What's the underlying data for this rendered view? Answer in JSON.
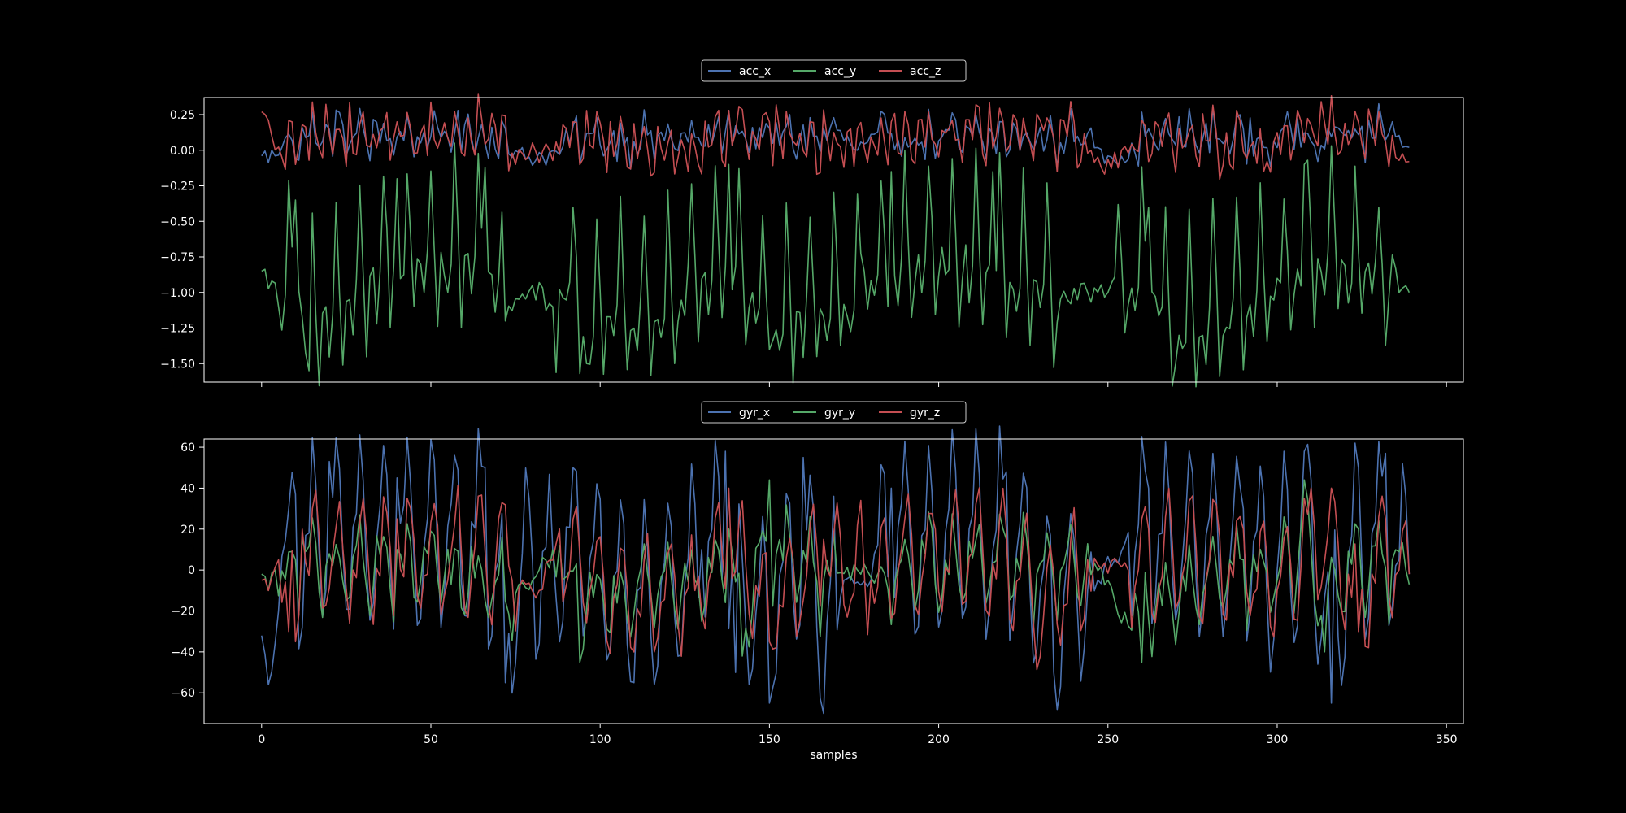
{
  "chart_data": [
    {
      "type": "line",
      "title": "",
      "xlabel": "",
      "ylabel": "",
      "xlim": [
        -17,
        355
      ],
      "ylim": [
        -1.63,
        0.37
      ],
      "x_ticks": [
        0,
        50,
        100,
        150,
        200,
        250,
        300,
        350
      ],
      "x_tick_labels_visible": false,
      "y_ticks": [
        0.25,
        0.0,
        -0.25,
        -0.5,
        -0.75,
        -1.0,
        -1.25,
        -1.5
      ],
      "y_tick_labels": [
        "0.25",
        "0.00",
        "−0.25",
        "−0.50",
        "−0.75",
        "−1.00",
        "−1.25",
        "−1.50"
      ],
      "grid": false,
      "legend_placement": "top-center-outside",
      "legend_columns": 3,
      "n_samples": 340,
      "series": [
        {
          "name": "acc_x",
          "color": "#4c72b0",
          "period": 7,
          "pattern": [
            0.02,
            0.16,
            0.12,
            0.0,
            -0.04,
            0.1,
            0.06
          ],
          "anchors": [
            [
              0,
              -0.04
            ],
            [
              4,
              -0.04
            ],
            [
              6,
              0.02
            ],
            [
              12,
              0.16
            ],
            [
              24,
              0.18
            ],
            [
              60,
              0.18
            ],
            [
              72,
              0.15
            ],
            [
              74,
              -0.05
            ],
            [
              88,
              -0.03
            ],
            [
              96,
              0.12
            ],
            [
              124,
              0.12
            ],
            [
              130,
              0.03
            ],
            [
              138,
              0.28
            ],
            [
              145,
              0.16
            ],
            [
              168,
              0.16
            ],
            [
              176,
              0.0
            ],
            [
              186,
              0.12
            ],
            [
              244,
              0.12
            ],
            [
              250,
              -0.04
            ],
            [
              258,
              -0.02
            ],
            [
              262,
              0.15
            ],
            [
              290,
              0.15
            ],
            [
              296,
              0.02
            ],
            [
              306,
              0.22
            ],
            [
              334,
              0.2
            ],
            [
              339,
              0.02
            ]
          ],
          "quiet_spans": [
            [
              0,
              6
            ],
            [
              73,
              88
            ],
            [
              170,
              182
            ],
            [
              244,
              258
            ],
            [
              334,
              339
            ]
          ]
        },
        {
          "name": "acc_y",
          "color": "#55a868",
          "period": 7,
          "pattern": [
            -1.1,
            -0.35,
            -0.9,
            -1.5,
            -1.15,
            -1.1,
            -1.3
          ],
          "anchors": [
            [
              0,
              -0.85
            ],
            [
              3,
              -0.92
            ],
            [
              5,
              -1.1
            ],
            [
              10,
              -0.35
            ],
            [
              14,
              -1.55
            ],
            [
              40,
              -0.2
            ],
            [
              66,
              -0.12
            ],
            [
              72,
              -1.2
            ],
            [
              80,
              -0.95
            ],
            [
              86,
              -1.1
            ],
            [
              92,
              -0.4
            ],
            [
              96,
              -1.5
            ],
            [
              126,
              -0.8
            ],
            [
              138,
              -0.1
            ],
            [
              150,
              -1.4
            ],
            [
              178,
              -0.85
            ],
            [
              186,
              -0.15
            ],
            [
              216,
              -0.15
            ],
            [
              238,
              -1.05
            ],
            [
              244,
              -1.0
            ],
            [
              250,
              -1.0
            ],
            [
              262,
              -0.4
            ],
            [
              270,
              -1.5
            ],
            [
              300,
              -0.9
            ],
            [
              308,
              -0.1
            ],
            [
              330,
              -0.4
            ],
            [
              336,
              -1.0
            ],
            [
              339,
              -1.0
            ]
          ],
          "quiet_spans": [
            [
              0,
              5
            ],
            [
              72,
              86
            ],
            [
              236,
              252
            ],
            [
              334,
              339
            ]
          ]
        },
        {
          "name": "acc_z",
          "color": "#c44e52",
          "period": 7,
          "pattern": [
            0.0,
            0.22,
            0.14,
            -0.06,
            -0.08,
            0.18,
            0.05
          ],
          "anchors": [
            [
              0,
              0.27
            ],
            [
              3,
              0.1
            ],
            [
              6,
              -0.05
            ],
            [
              10,
              -0.1
            ],
            [
              12,
              0.18
            ],
            [
              40,
              0.2
            ],
            [
              72,
              0.24
            ],
            [
              74,
              -0.02
            ],
            [
              88,
              -0.02
            ],
            [
              92,
              0.2
            ],
            [
              126,
              -0.15
            ],
            [
              138,
              0.28
            ],
            [
              150,
              0.2
            ],
            [
              170,
              0.05
            ],
            [
              178,
              0.02
            ],
            [
              186,
              0.2
            ],
            [
              240,
              0.2
            ],
            [
              248,
              -0.12
            ],
            [
              256,
              -0.02
            ],
            [
              264,
              0.2
            ],
            [
              296,
              -0.15
            ],
            [
              306,
              0.28
            ],
            [
              330,
              0.27
            ],
            [
              335,
              -0.05
            ],
            [
              339,
              -0.08
            ]
          ],
          "quiet_spans": [
            [
              0,
              6
            ],
            [
              74,
              88
            ],
            [
              244,
              258
            ],
            [
              335,
              339
            ]
          ]
        }
      ]
    },
    {
      "type": "line",
      "title": "",
      "xlabel": "samples",
      "ylabel": "",
      "xlim": [
        -17,
        355
      ],
      "ylim": [
        -75,
        64
      ],
      "x_ticks": [
        0,
        50,
        100,
        150,
        200,
        250,
        300,
        350
      ],
      "x_tick_labels": [
        "0",
        "50",
        "100",
        "150",
        "200",
        "250",
        "300",
        "350"
      ],
      "y_ticks": [
        60,
        40,
        20,
        0,
        -20,
        -40,
        -60
      ],
      "y_tick_labels": [
        "60",
        "40",
        "20",
        "0",
        "−20",
        "−40",
        "−60"
      ],
      "grid": false,
      "legend_placement": "top-center-outside",
      "legend_columns": 3,
      "n_samples": 340,
      "series": [
        {
          "name": "gyr_x",
          "color": "#4c72b0",
          "period": 7,
          "pattern": [
            10,
            45,
            30,
            -15,
            -45,
            -35,
            0
          ],
          "anchors": [
            [
              0,
              -32
            ],
            [
              2,
              -56
            ],
            [
              5,
              -20
            ],
            [
              8,
              30
            ],
            [
              10,
              37
            ],
            [
              20,
              53
            ],
            [
              40,
              45
            ],
            [
              66,
              50
            ],
            [
              72,
              -55
            ],
            [
              80,
              5
            ],
            [
              86,
              10
            ],
            [
              92,
              50
            ],
            [
              110,
              -55
            ],
            [
              130,
              10
            ],
            [
              137,
              58
            ],
            [
              140,
              -50
            ],
            [
              150,
              -65
            ],
            [
              160,
              55
            ],
            [
              166,
              -70
            ],
            [
              172,
              -5
            ],
            [
              180,
              -5
            ],
            [
              186,
              40
            ],
            [
              220,
              48
            ],
            [
              234,
              -50
            ],
            [
              244,
              -10
            ],
            [
              252,
              5
            ],
            [
              262,
              40
            ],
            [
              290,
              30
            ],
            [
              300,
              0
            ],
            [
              308,
              58
            ],
            [
              316,
              -65
            ],
            [
              324,
              50
            ],
            [
              332,
              57
            ],
            [
              336,
              5
            ],
            [
              339,
              -2
            ]
          ],
          "quiet_spans": [
            [
              0,
              4
            ],
            [
              170,
              182
            ],
            [
              246,
              256
            ]
          ]
        },
        {
          "name": "gyr_y",
          "color": "#55a868",
          "period": 7,
          "pattern": [
            0,
            15,
            8,
            -10,
            -25,
            -12,
            5
          ],
          "anchors": [
            [
              0,
              -2
            ],
            [
              2,
              -10
            ],
            [
              4,
              0
            ],
            [
              10,
              5
            ],
            [
              12,
              15
            ],
            [
              40,
              10
            ],
            [
              72,
              -15
            ],
            [
              80,
              -5
            ],
            [
              88,
              12
            ],
            [
              94,
              -45
            ],
            [
              128,
              -5
            ],
            [
              138,
              20
            ],
            [
              142,
              -42
            ],
            [
              150,
              44
            ],
            [
              166,
              -5
            ],
            [
              176,
              0
            ],
            [
              182,
              -2
            ],
            [
              190,
              15
            ],
            [
              220,
              15
            ],
            [
              240,
              5
            ],
            [
              250,
              -5
            ],
            [
              260,
              -45
            ],
            [
              290,
              5
            ],
            [
              300,
              -5
            ],
            [
              308,
              44
            ],
            [
              314,
              -40
            ],
            [
              324,
              20
            ],
            [
              334,
              5
            ],
            [
              339,
              -7
            ]
          ],
          "quiet_spans": [
            [
              0,
              4
            ],
            [
              76,
              86
            ],
            [
              170,
              184
            ],
            [
              246,
              256
            ]
          ]
        },
        {
          "name": "gyr_z",
          "color": "#c44e52",
          "period": 7,
          "pattern": [
            -5,
            20,
            25,
            5,
            -25,
            -30,
            -10
          ],
          "anchors": [
            [
              0,
              -5
            ],
            [
              2,
              -10
            ],
            [
              5,
              5
            ],
            [
              8,
              -30
            ],
            [
              10,
              -35
            ],
            [
              12,
              20
            ],
            [
              40,
              25
            ],
            [
              70,
              25
            ],
            [
              74,
              -5
            ],
            [
              82,
              -10
            ],
            [
              88,
              20
            ],
            [
              110,
              -40
            ],
            [
              128,
              -10
            ],
            [
              138,
              40
            ],
            [
              150,
              -35
            ],
            [
              166,
              15
            ],
            [
              180,
              -5
            ],
            [
              190,
              25
            ],
            [
              220,
              20
            ],
            [
              230,
              -42
            ],
            [
              244,
              5
            ],
            [
              256,
              0
            ],
            [
              262,
              20
            ],
            [
              290,
              20
            ],
            [
              300,
              -10
            ],
            [
              308,
              35
            ],
            [
              316,
              40
            ],
            [
              324,
              -30
            ],
            [
              332,
              25
            ],
            [
              339,
              -2
            ]
          ],
          "quiet_spans": [
            [
              0,
              4
            ],
            [
              76,
              86
            ],
            [
              246,
              256
            ]
          ]
        }
      ]
    }
  ]
}
